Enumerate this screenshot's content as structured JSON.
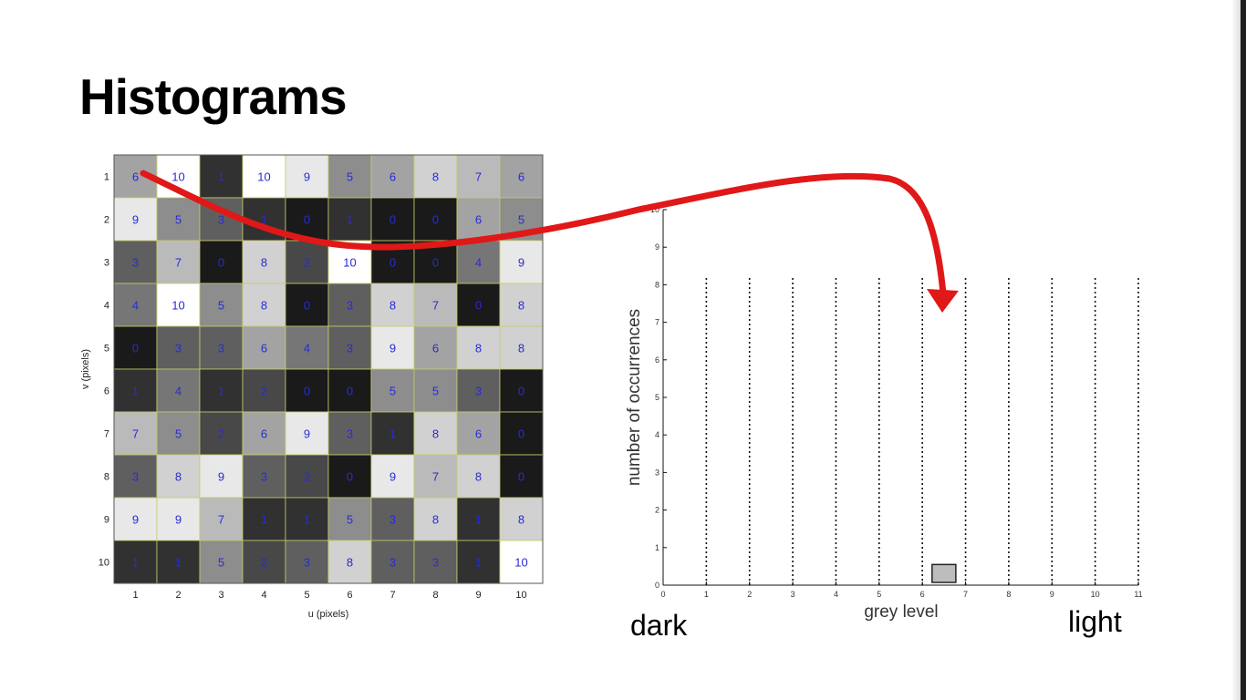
{
  "slide": {
    "title": "Histograms",
    "dark_label": "dark",
    "light_label": "light"
  },
  "colors": {
    "cell_text": "#2a2ad8",
    "grid_line": "#c9c96a",
    "arrow": "#e01818",
    "bar_fill": "#bdbdbd"
  },
  "chart_data": [
    {
      "type": "heatmap",
      "title": "",
      "xlabel": "u (pixels)",
      "ylabel": "v (pixels)",
      "x_ticks": [
        "1",
        "2",
        "3",
        "4",
        "5",
        "6",
        "7",
        "8",
        "9",
        "10"
      ],
      "y_ticks": [
        "1",
        "2",
        "3",
        "4",
        "5",
        "6",
        "7",
        "8",
        "9",
        "10"
      ],
      "value_range": [
        0,
        10
      ],
      "colormap": "grey (0 = black, 10 = white)",
      "values": [
        [
          6,
          10,
          1,
          10,
          9,
          5,
          6,
          8,
          7,
          6
        ],
        [
          9,
          5,
          3,
          1,
          0,
          1,
          0,
          0,
          6,
          5
        ],
        [
          3,
          7,
          0,
          8,
          2,
          10,
          0,
          0,
          4,
          9
        ],
        [
          4,
          10,
          5,
          8,
          0,
          3,
          8,
          7,
          0,
          8
        ],
        [
          0,
          3,
          3,
          6,
          4,
          3,
          9,
          6,
          8,
          8
        ],
        [
          1,
          4,
          1,
          2,
          0,
          0,
          5,
          5,
          3,
          0
        ],
        [
          7,
          5,
          2,
          6,
          9,
          3,
          1,
          8,
          6,
          0
        ],
        [
          3,
          8,
          9,
          3,
          2,
          0,
          9,
          7,
          8,
          0
        ],
        [
          9,
          9,
          7,
          1,
          1,
          5,
          3,
          8,
          1,
          8
        ],
        [
          1,
          1,
          5,
          2,
          3,
          8,
          3,
          3,
          1,
          10
        ]
      ]
    },
    {
      "type": "bar",
      "title": "",
      "xlabel": "grey level",
      "ylabel": "number of occurrences",
      "x_ticks": [
        "0",
        "1",
        "2",
        "3",
        "4",
        "5",
        "6",
        "7",
        "8",
        "9",
        "10",
        "11"
      ],
      "y_ticks": [
        "0",
        "1",
        "2",
        "3",
        "4",
        "5",
        "6",
        "7",
        "8",
        "9",
        "10"
      ],
      "xlim": [
        0,
        11
      ],
      "ylim": [
        0,
        10
      ],
      "bin_separators": [
        1,
        2,
        3,
        4,
        5,
        6,
        7,
        8,
        9,
        10,
        11
      ],
      "bars": [
        {
          "x": 6.5,
          "value": 0.55
        }
      ]
    }
  ]
}
